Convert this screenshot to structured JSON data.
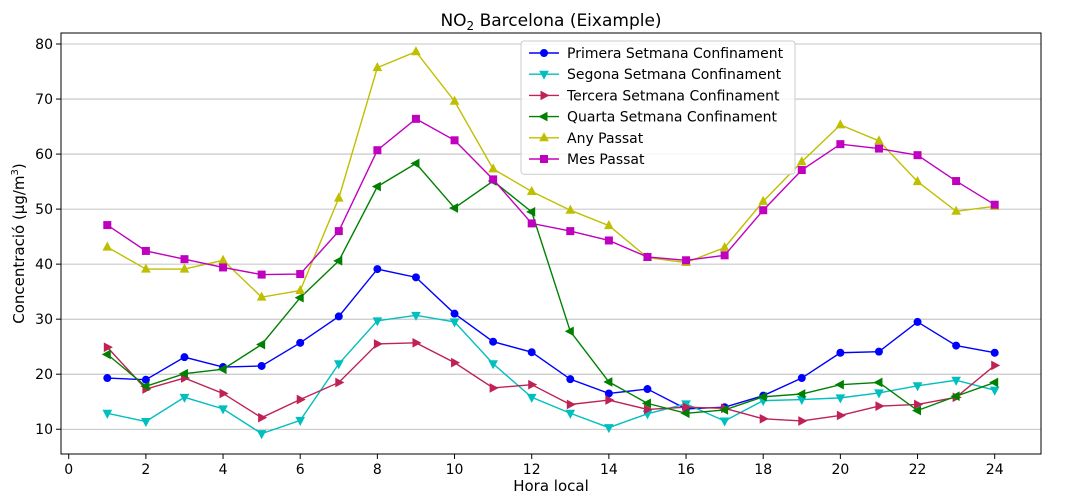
{
  "chart_data": {
    "type": "line",
    "title_main": "NO",
    "title_sub": "2",
    "title_rest": " Barcelona (Eixample)",
    "xlabel": "Hora local",
    "ylabel_main": "Concentració (µg/m",
    "ylabel_sup": "3",
    "ylabel_end": ")",
    "xlim": [
      -0.2,
      25.2
    ],
    "ylim": [
      5.5,
      82
    ],
    "xticks": [
      "0",
      "2",
      "4",
      "6",
      "8",
      "10",
      "12",
      "14",
      "16",
      "18",
      "20",
      "22",
      "24"
    ],
    "yticks": [
      "10",
      "20",
      "30",
      "40",
      "50",
      "60",
      "70",
      "80"
    ],
    "grid": "horizontal",
    "legend_position": "top-center",
    "x": [
      1,
      2,
      3,
      4,
      5,
      6,
      7,
      8,
      9,
      10,
      11,
      12,
      13,
      14,
      15,
      16,
      17,
      18,
      19,
      20,
      21,
      22,
      23,
      24
    ],
    "series": [
      {
        "name": "Primera Setmana Confinament",
        "color": "#0000ff",
        "marker": "circle",
        "values": [
          19.3,
          19.0,
          23.1,
          21.3,
          21.5,
          25.7,
          30.5,
          39.1,
          37.6,
          31.0,
          25.9,
          24.0,
          19.1,
          16.5,
          17.3,
          13.7,
          14.0,
          16.1,
          19.3,
          23.9,
          24.1,
          29.5,
          25.2,
          23.9
        ]
      },
      {
        "name": "Segona Setmana Confinament",
        "color": "#00bfbf",
        "marker": "triangle-down",
        "values": [
          12.9,
          11.4,
          15.8,
          13.7,
          9.2,
          11.6,
          21.9,
          29.7,
          30.7,
          29.5,
          21.9,
          15.8,
          12.9,
          10.3,
          12.8,
          14.6,
          11.5,
          15.2,
          15.4,
          15.7,
          16.6,
          17.9,
          18.9,
          17.1
        ]
      },
      {
        "name": "Tercera Setmana Confinament",
        "color": "#bf2255",
        "marker": "triangle-right",
        "values": [
          24.9,
          17.3,
          19.3,
          16.5,
          12.1,
          15.4,
          18.5,
          25.5,
          25.7,
          22.1,
          17.5,
          18.1,
          14.5,
          15.3,
          13.6,
          14.0,
          13.8,
          11.9,
          11.5,
          12.5,
          14.2,
          14.5,
          15.8,
          21.6
        ]
      },
      {
        "name": "Quarta Setmana Confinament",
        "color": "#008000",
        "marker": "triangle-left",
        "values": [
          23.6,
          17.8,
          20.1,
          20.9,
          25.4,
          33.9,
          40.6,
          54.1,
          58.3,
          50.2,
          55.1,
          49.5,
          27.8,
          18.6,
          14.7,
          12.9,
          13.5,
          15.9,
          16.4,
          18.1,
          18.5,
          13.4,
          16.0,
          18.5
        ]
      },
      {
        "name": "Any Passat",
        "color": "#bfbf00",
        "marker": "triangle-up",
        "values": [
          43.1,
          39.1,
          39.1,
          40.7,
          34.0,
          35.2,
          52.0,
          75.7,
          78.6,
          69.6,
          57.3,
          53.2,
          49.8,
          47.0,
          41.2,
          40.3,
          43.0,
          51.4,
          58.6,
          65.3,
          62.4,
          55.0,
          49.6,
          50.5
        ]
      },
      {
        "name": "Mes Passat",
        "color": "#bf00bf",
        "marker": "square",
        "values": [
          47.1,
          42.4,
          40.9,
          39.4,
          38.1,
          38.2,
          46.0,
          60.7,
          66.4,
          62.5,
          55.4,
          47.4,
          46.0,
          44.3,
          41.3,
          40.7,
          41.6,
          49.8,
          57.1,
          61.8,
          61.0,
          59.8,
          55.1,
          50.8
        ]
      }
    ]
  }
}
